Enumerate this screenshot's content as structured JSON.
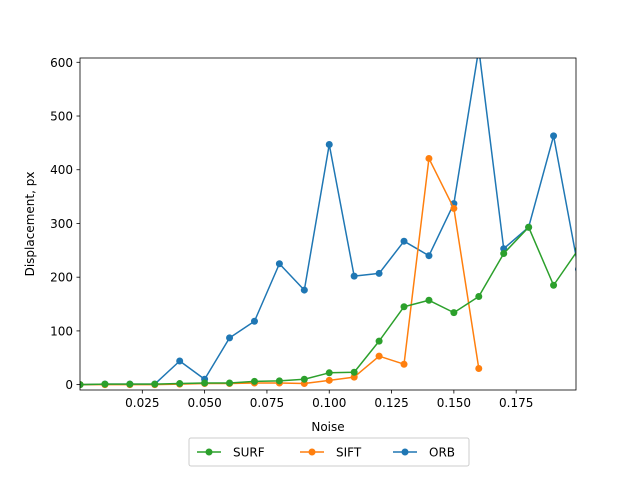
{
  "chart_data": {
    "type": "line",
    "xlabel": "Noise",
    "ylabel": "Displacement, px",
    "xlim": [
      0.0,
      0.199
    ],
    "ylim": [
      -10,
      608
    ],
    "xticks": [
      0.025,
      0.05,
      0.075,
      0.1,
      0.125,
      0.15,
      0.175
    ],
    "xtick_labels": [
      "0.025",
      "0.050",
      "0.075",
      "0.100",
      "0.125",
      "0.150",
      "0.175"
    ],
    "yticks": [
      0,
      100,
      200,
      300,
      400,
      500,
      600
    ],
    "ytick_labels": [
      "0",
      "100",
      "200",
      "300",
      "400",
      "500",
      "600"
    ],
    "grid": false,
    "legend_position": "below-center",
    "series": [
      {
        "name": "SURF",
        "color": "#2ca02c",
        "x": [
          0.0,
          0.01,
          0.02,
          0.03,
          0.04,
          0.05,
          0.06,
          0.07,
          0.08,
          0.09,
          0.1,
          0.11,
          0.12,
          0.13,
          0.14,
          0.15,
          0.16,
          0.17,
          0.18,
          0.19,
          0.2
        ],
        "values": [
          0,
          1,
          1,
          1,
          2,
          3,
          3,
          6,
          7,
          10,
          22,
          23,
          81,
          145,
          157,
          134,
          164,
          244,
          293,
          185,
          252
        ]
      },
      {
        "name": "SIFT",
        "color": "#ff7f0e",
        "x": [
          0.0,
          0.01,
          0.02,
          0.03,
          0.04,
          0.05,
          0.06,
          0.07,
          0.08,
          0.09,
          0.1,
          0.11,
          0.12,
          0.13,
          0.14,
          0.15,
          0.16
        ],
        "values": [
          0,
          0,
          0,
          0,
          1,
          2,
          2,
          3,
          3,
          2,
          8,
          14,
          53,
          38,
          421,
          328,
          30
        ]
      },
      {
        "name": "ORB",
        "color": "#1f77b4",
        "x": [
          0.0,
          0.01,
          0.02,
          0.03,
          0.04,
          0.05,
          0.06,
          0.07,
          0.08,
          0.09,
          0.1,
          0.11,
          0.12,
          0.13,
          0.14,
          0.15,
          0.16,
          0.17,
          0.18,
          0.19,
          0.2
        ],
        "values": [
          0,
          1,
          1,
          1,
          44,
          10,
          87,
          118,
          225,
          176,
          447,
          202,
          207,
          267,
          240,
          337,
          625,
          253,
          293,
          463,
          215
        ]
      }
    ],
    "legend_order": [
      "SURF",
      "SIFT",
      "ORB"
    ]
  }
}
